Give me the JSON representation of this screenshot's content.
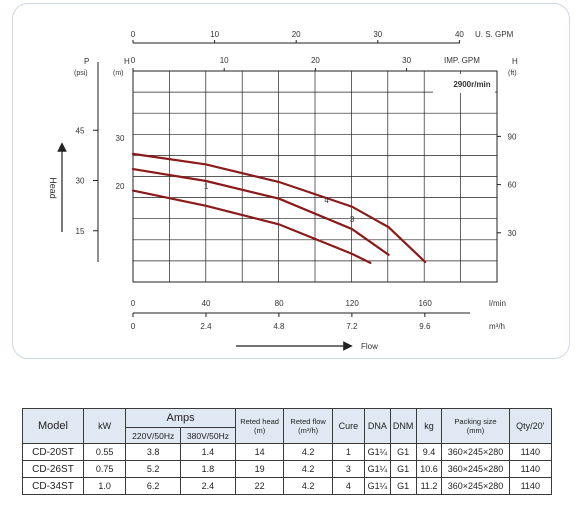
{
  "chart_data": {
    "type": "line",
    "title": "",
    "speed_label": "2900r/min",
    "x_axes": {
      "us_gpm": {
        "label": "U. S. GPM",
        "ticks": [
          "0",
          "10",
          "20",
          "30",
          "40"
        ],
        "values": [
          0,
          10,
          20,
          30,
          40
        ]
      },
      "imp_gpm": {
        "label": "IMP. GPM",
        "ticks": [
          "0",
          "10",
          "20",
          "30"
        ],
        "values": [
          0,
          10,
          20,
          30
        ]
      },
      "l_min": {
        "label": "l/min",
        "ticks": [
          "0",
          "40",
          "80",
          "120",
          "160"
        ],
        "values": [
          0,
          40,
          80,
          120,
          160
        ]
      },
      "m3_h": {
        "label": "m³/h",
        "ticks": [
          "0",
          "2.4",
          "4.8",
          "7.2",
          "9.6"
        ],
        "values": [
          0,
          2.4,
          4.8,
          7.2,
          9.6
        ]
      }
    },
    "y_axes": {
      "head_m": {
        "label": "H",
        "unit": "(m)",
        "ticks": [
          "20",
          "30"
        ],
        "values": [
          20,
          30
        ]
      },
      "pressure_psi": {
        "label": "P",
        "unit": "(psi)",
        "ticks": [
          "15",
          "30",
          "45"
        ],
        "values": [
          15,
          30,
          45
        ]
      },
      "head_ft": {
        "label": "H",
        "unit": "(ft)",
        "ticks": [
          "30",
          "60",
          "90"
        ],
        "values": [
          30,
          60,
          90
        ]
      }
    },
    "axis_titles": {
      "vertical": "Head",
      "horizontal": "Flow"
    },
    "series": [
      {
        "name": "1",
        "x": [
          0,
          40,
          80,
          120,
          130
        ],
        "y": [
          19.0,
          15.8,
          11.9,
          5.7,
          3.8
        ]
      },
      {
        "name": "3",
        "x": [
          0,
          40,
          80,
          120,
          140
        ],
        "y": [
          23.5,
          21.0,
          17.3,
          10.9,
          5.5
        ]
      },
      {
        "name": "4",
        "x": [
          0,
          40,
          80,
          120,
          140,
          160
        ],
        "y": [
          26.7,
          24.5,
          20.8,
          15.6,
          11.3,
          4.0
        ]
      }
    ]
  },
  "table": {
    "headers": {
      "model": "Model",
      "kw": "kW",
      "amps": "Amps",
      "amps_220": "220V/50Hz",
      "amps_380": "380V/50Hz",
      "head": "Reted head",
      "head_unit": "(m)",
      "flow": "Reted flow",
      "flow_unit": "(m³/h)",
      "cure": "Cure",
      "dna": "DNA",
      "dnm": "DNM",
      "kg": "kg",
      "packing": "Packing size",
      "packing_unit": "(mm)",
      "qty": "Qty/20'"
    },
    "rows": [
      [
        "CD-20ST",
        "0.55",
        "3.8",
        "1.4",
        "14",
        "4.2",
        "1",
        "G1¼",
        "G1",
        "9.4",
        "360×245×280",
        "1140"
      ],
      [
        "CD-26ST",
        "0.75",
        "5.2",
        "1.8",
        "19",
        "4.2",
        "3",
        "G1¼",
        "G1",
        "10.6",
        "360×245×280",
        "1140"
      ],
      [
        "CD-34ST",
        "1.0",
        "6.2",
        "2.4",
        "22",
        "4.2",
        "4",
        "G1¼",
        "G1",
        "11.2",
        "360×245×280",
        "1140"
      ]
    ]
  }
}
